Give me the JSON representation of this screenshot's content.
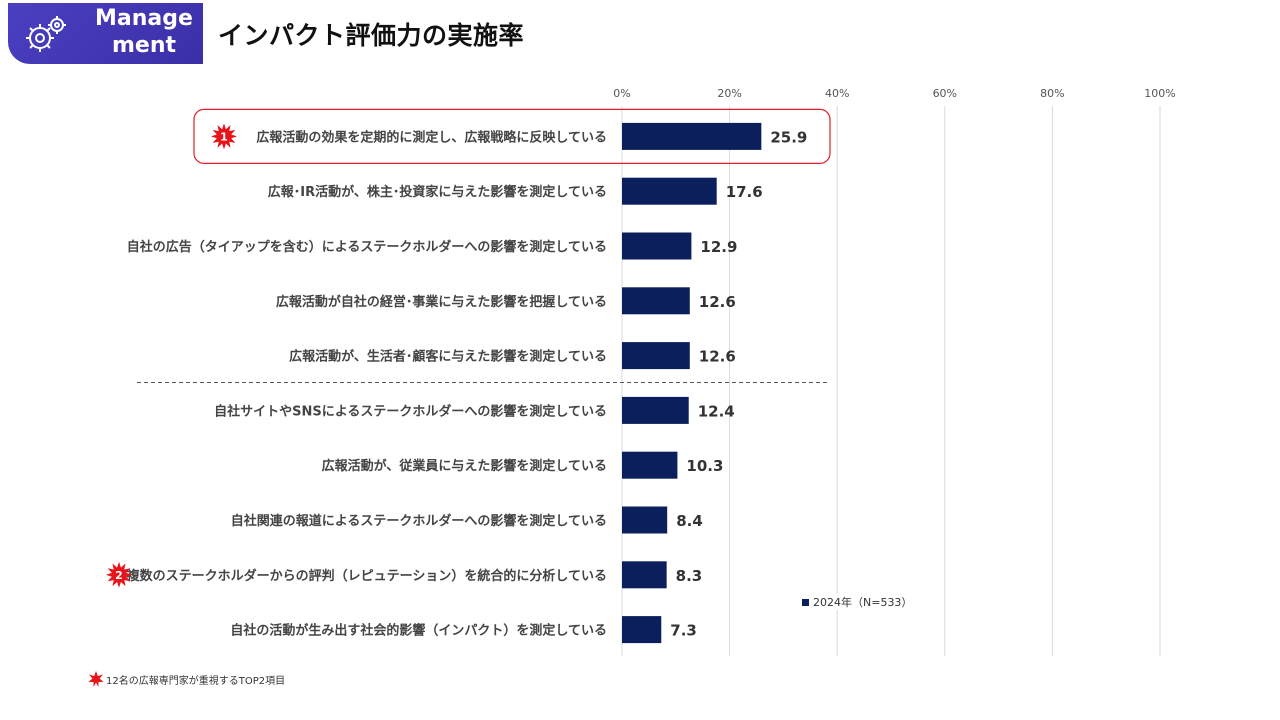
{
  "badge": {
    "label": "Manage\nment",
    "icon": "gears-icon"
  },
  "title": "インパクト評価力の実施率",
  "colors": {
    "bar": "#0b1f5c",
    "badge": "#4337b8",
    "star": "#e8141c",
    "highlight": "#e0202a"
  },
  "chart_data": {
    "type": "bar",
    "orientation": "horizontal",
    "xlim": [
      0,
      100
    ],
    "ticks": [
      "0%",
      "20%",
      "40%",
      "60%",
      "80%",
      "100%"
    ],
    "tick_values": [
      0,
      20,
      40,
      60,
      80,
      100
    ],
    "grid": true,
    "legend_position": "bottom-right",
    "series": [
      {
        "name": "2024年（N=533）",
        "values": [
          25.9,
          17.6,
          12.9,
          12.6,
          12.6,
          12.4,
          10.3,
          8.4,
          8.3,
          7.3
        ]
      }
    ],
    "categories": [
      "広報活動の効果を定期的に測定し、広報戦略に反映している",
      "広報･IR活動が、株主･投資家に与えた影響を測定している",
      "自社の広告（タイアップを含む）によるステークホルダーへの影響を測定している",
      "広報活動が自社の経営･事業に与えた影響を把握している",
      "広報活動が、生活者･顧客に与えた影響を測定している",
      "自社サイトやSNSによるステークホルダーへの影響を測定している",
      "広報活動が、従業員に与えた影響を測定している",
      "自社関連の報道によるステークホルダーへの影響を測定している",
      "複数のステークホルダーからの評判（レピュテーション）を統合的に分析している",
      "自社の活動が生み出す社会的影響（インパクト）を測定している"
    ],
    "data_labels": [
      "25.9",
      "17.6",
      "12.9",
      "12.6",
      "12.6",
      "12.4",
      "10.3",
      "8.4",
      "8.3",
      "7.3"
    ],
    "markers": [
      {
        "category_index": 0,
        "label": "1",
        "highlighted": true
      },
      {
        "category_index": 8,
        "label": "2",
        "highlighted": false
      }
    ],
    "divider_after_index": 4
  },
  "footnote": "12名の広報専門家が重視するTOP2項目"
}
